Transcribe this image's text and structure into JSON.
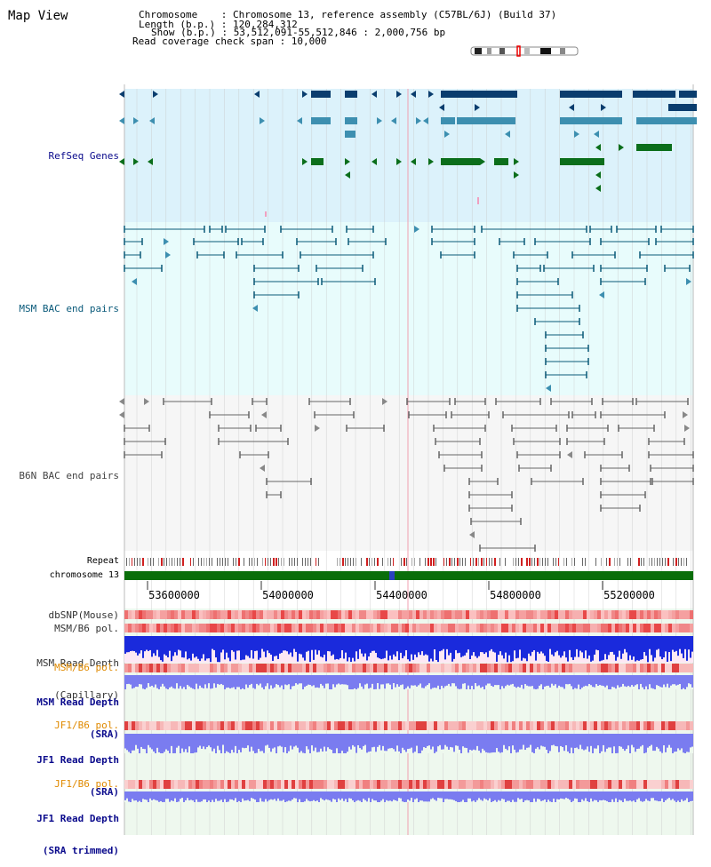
{
  "page_title": "Map View",
  "header": {
    "chromosome_label": "Chromosome    : Chromosome 13, reference assembly (C57BL/6J) (Build 37)",
    "length_label": "Length (b.p.) : 120,284,312",
    "show_label": "Show (b.p.) : 53,512,091-55,512,846 : 2,000,756 bp",
    "span_label": "Read coverage check span : 10,000"
  },
  "tracks": {
    "refseq": "RefSeq Genes",
    "msm_bac": "MSM BAC end pairs",
    "b6n_bac": "B6N BAC end pairs",
    "repeat": "Repeat",
    "chromosome": "chromosome 13",
    "dbsnp": "dbSNP(Mouse)",
    "msm_b6_pol_1": "MSM/B6 pol.",
    "msm_read_depth_cap_1": "MSM Read Depth",
    "msm_read_depth_cap_2": "(Capillary)",
    "msm_b6_pol_2": "MSM/B6 pol.",
    "msm_read_depth_sra_1": "MSM Read Depth",
    "msm_read_depth_sra_2": "(SRA)",
    "jf1_b6_pol_1": "JF1/B6 pol.",
    "jf1_read_depth_sra_1": "JF1 Read Depth",
    "jf1_read_depth_sra_2": "(SRA)",
    "jf1_b6_pol_2": "JF1/B6 pol.",
    "jf1_read_depth_trim_1": "JF1 Read Depth",
    "jf1_read_depth_trim_2": "(SRA trimmed)"
  },
  "axis": {
    "ticks": [
      "53600000",
      "54000000",
      "54400000",
      "54800000",
      "55200000"
    ]
  },
  "colors": {
    "refseq_bg": "#dcf2fb",
    "bac_bg": "#e8fcfc",
    "refseq_dark": "#0a3d6e",
    "refseq_mid": "#3d8fb0",
    "refseq_green": "#0b6e1b",
    "msm_bac": "#0a5a78",
    "b6n_bac": "#666666",
    "chromosome_bar": "#0a6e0a",
    "label_blue": "#0a0a8c",
    "label_orange": "#e08a00",
    "label_teal": "#0a5a7a",
    "label_gray": "#444444"
  }
}
